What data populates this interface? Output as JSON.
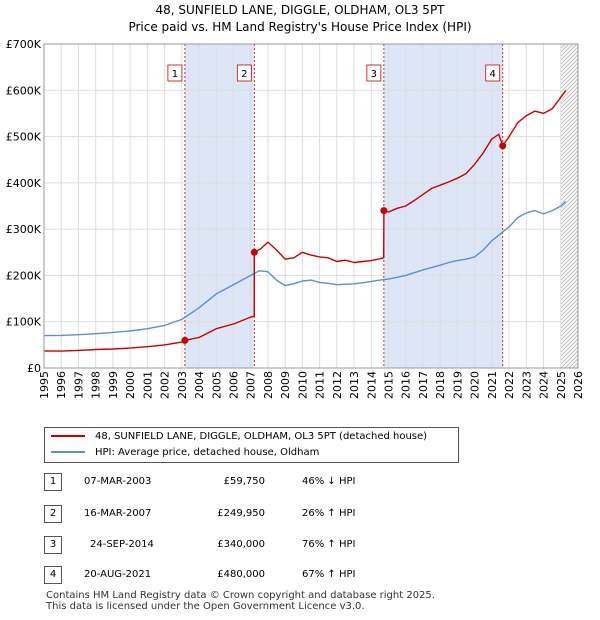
{
  "title_line1": "48, SUNFIELD LANE, DIGGLE, OLDHAM, OL3 5PT",
  "title_line2": "Price paid vs. HM Land Registry's House Price Index (HPI)",
  "colors": {
    "property": "#cc0000",
    "hpi": "#5b8fcf",
    "shade": "#dce6f6",
    "grid": "#dddddd",
    "vline": "#cc0000"
  },
  "chart_data": {
    "type": "line",
    "title": "Price paid vs. HM Land Registry's House Price Index (HPI)",
    "xlabel": "",
    "ylabel": "",
    "xlim": [
      1995,
      2026
    ],
    "ylim": [
      0,
      700000
    ],
    "y_ticks": [
      0,
      100000,
      200000,
      300000,
      400000,
      500000,
      600000,
      700000
    ],
    "y_tick_labels": [
      "£0",
      "£100K",
      "£200K",
      "£300K",
      "£400K",
      "£500K",
      "£600K",
      "£700K"
    ],
    "x_ticks": [
      1995,
      1996,
      1997,
      1998,
      1999,
      2000,
      2001,
      2002,
      2003,
      2004,
      2005,
      2006,
      2007,
      2008,
      2009,
      2010,
      2011,
      2012,
      2013,
      2014,
      2015,
      2016,
      2017,
      2018,
      2019,
      2020,
      2021,
      2022,
      2023,
      2024,
      2025,
      2026
    ],
    "x_tick_labels": [
      "1995",
      "1996",
      "1997",
      "1998",
      "1999",
      "2000",
      "2001",
      "2002",
      "2003",
      "2004",
      "2005",
      "2006",
      "2007",
      "2008",
      "2009",
      "2010",
      "2011",
      "2012",
      "2013",
      "2014",
      "2015",
      "2016",
      "2017",
      "2018",
      "2019",
      "2020",
      "2021",
      "2022",
      "2023",
      "2024",
      "2025",
      "2026"
    ],
    "shaded_ranges": [
      [
        2003.18,
        2007.21
      ],
      [
        2014.73,
        2021.63
      ]
    ],
    "forecast_start": 2025.0,
    "series": [
      {
        "name": "48, SUNFIELD LANE, DIGGLE, OLDHAM, OL3 5PT (detached house)",
        "x": [
          1995.0,
          1996.0,
          1997.0,
          1998.0,
          1999.0,
          2000.0,
          2001.0,
          2002.0,
          2003.0,
          2003.18,
          2004.0,
          2005.0,
          2006.0,
          2007.0,
          2007.2,
          2007.21,
          2007.6,
          2008.0,
          2008.5,
          2009.0,
          2009.5,
          2010.0,
          2010.5,
          2011.0,
          2011.5,
          2012.0,
          2012.5,
          2013.0,
          2013.5,
          2014.0,
          2014.5,
          2014.72,
          2014.73,
          2015.0,
          2015.5,
          2016.0,
          2016.5,
          2017.0,
          2017.5,
          2018.0,
          2018.5,
          2019.0,
          2019.5,
          2020.0,
          2020.5,
          2021.0,
          2021.4,
          2021.63,
          2022.0,
          2022.5,
          2023.0,
          2023.5,
          2024.0,
          2024.5,
          2025.0,
          2025.3
        ],
        "values": [
          37000,
          36500,
          38000,
          40000,
          41000,
          43000,
          46000,
          50000,
          56000,
          59750,
          66000,
          85000,
          95000,
          110000,
          112000,
          249950,
          258000,
          272000,
          255000,
          235000,
          238000,
          250000,
          244000,
          240000,
          238000,
          230000,
          233000,
          228000,
          230000,
          232000,
          236000,
          238000,
          340000,
          337000,
          345000,
          350000,
          362000,
          375000,
          388000,
          395000,
          402000,
          410000,
          420000,
          440000,
          465000,
          495000,
          505000,
          480000,
          500000,
          530000,
          545000,
          555000,
          550000,
          560000,
          585000,
          600000
        ]
      },
      {
        "name": "HPI: Average price, detached house, Oldham",
        "x": [
          1995.0,
          1996.0,
          1997.0,
          1998.0,
          1999.0,
          2000.0,
          2001.0,
          2002.0,
          2003.0,
          2004.0,
          2005.0,
          2006.0,
          2007.0,
          2007.5,
          2008.0,
          2008.5,
          2009.0,
          2009.5,
          2010.0,
          2010.5,
          2011.0,
          2011.5,
          2012.0,
          2012.5,
          2013.0,
          2013.5,
          2014.0,
          2014.5,
          2015.0,
          2015.5,
          2016.0,
          2016.5,
          2017.0,
          2017.5,
          2018.0,
          2018.5,
          2019.0,
          2019.5,
          2020.0,
          2020.5,
          2021.0,
          2021.5,
          2022.0,
          2022.5,
          2023.0,
          2023.5,
          2024.0,
          2024.5,
          2025.0,
          2025.3
        ],
        "values": [
          70000,
          70500,
          72000,
          74000,
          77000,
          80000,
          85000,
          92000,
          105000,
          130000,
          160000,
          180000,
          200000,
          210000,
          208000,
          190000,
          178000,
          182000,
          188000,
          190000,
          185000,
          183000,
          180000,
          181000,
          182000,
          184000,
          187000,
          190000,
          192000,
          196000,
          200000,
          206000,
          212000,
          217000,
          222000,
          228000,
          232000,
          235000,
          240000,
          255000,
          275000,
          290000,
          305000,
          325000,
          335000,
          340000,
          333000,
          340000,
          350000,
          360000
        ]
      }
    ],
    "sale_markers": [
      {
        "label": "1",
        "x": 2003.18,
        "y": 59750
      },
      {
        "label": "2",
        "x": 2007.21,
        "y": 249950
      },
      {
        "label": "3",
        "x": 2014.73,
        "y": 340000
      },
      {
        "label": "4",
        "x": 2021.63,
        "y": 480000
      }
    ]
  },
  "legend": {
    "property_label": "48, SUNFIELD LANE, DIGGLE, OLDHAM, OL3 5PT (detached house)",
    "hpi_label": "HPI: Average price, detached house, Oldham"
  },
  "sales": [
    {
      "num": "1",
      "date": "07-MAR-2003",
      "price": "£59,750",
      "hpi": "46% ↓ HPI"
    },
    {
      "num": "2",
      "date": "16-MAR-2007",
      "price": "£249,950",
      "hpi": "26% ↑ HPI"
    },
    {
      "num": "3",
      "date": "24-SEP-2014",
      "price": "£340,000",
      "hpi": "76% ↑ HPI"
    },
    {
      "num": "4",
      "date": "20-AUG-2021",
      "price": "£480,000",
      "hpi": "67% ↑ HPI"
    }
  ],
  "footer_line1": "Contains HM Land Registry data © Crown copyright and database right 2025.",
  "footer_line2": "This data is licensed under the Open Government Licence v3.0."
}
